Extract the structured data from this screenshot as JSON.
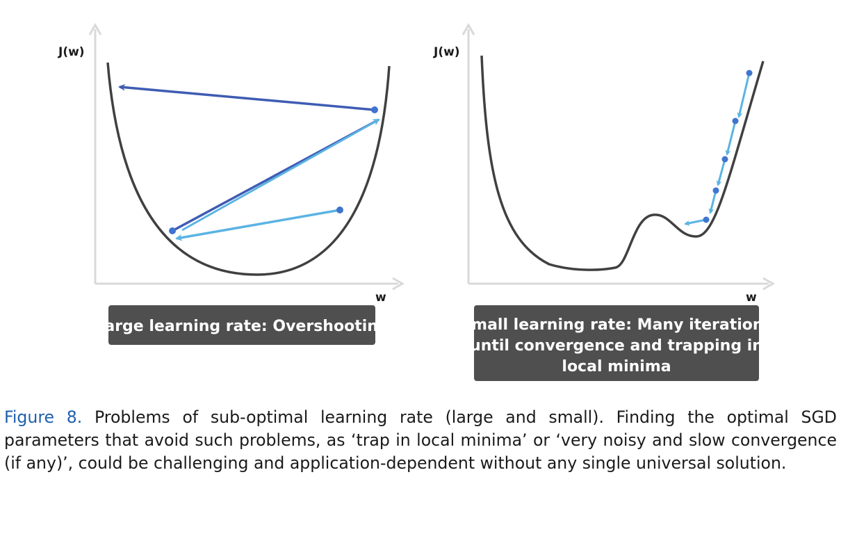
{
  "panels": [
    {
      "y_label": "J(w)",
      "x_label": "w",
      "caption_lines": [
        "Large learning rate: Overshooting"
      ]
    },
    {
      "y_label": "J(w)",
      "x_label": "w",
      "caption_lines": [
        "Small learning rate: Many iterations",
        "until convergence and trapping in",
        "local minima"
      ]
    }
  ],
  "caption": {
    "label": "Figure 8.",
    "text": " Problems of sub-optimal learning rate (large and small). Finding the optimal SGD parameters that avoid such problems, as ‘trap in local minima’ or ‘very noisy and slow convergence (if any)’, could be challenging and application-dependent without any single universal solution."
  },
  "colors": {
    "curve": "#404040",
    "axis": "#d9d9d9",
    "arrow_dark": "#3f5cb3",
    "arrow_light": "#5bb3e3",
    "dot": "#3f74cf",
    "label_box": "#4f4f4f",
    "caption_label": "#1f5fae"
  }
}
